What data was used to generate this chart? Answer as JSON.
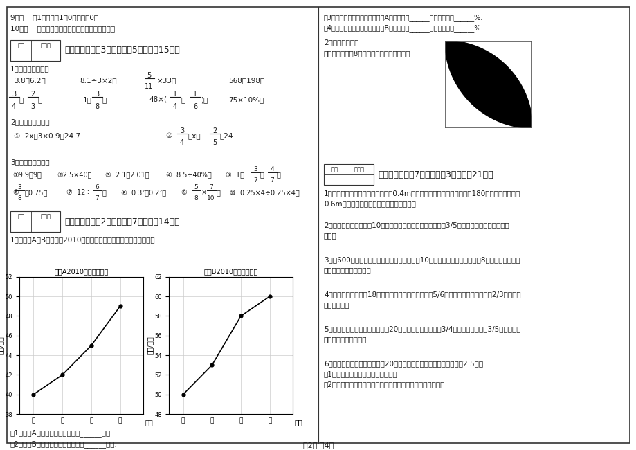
{
  "page_bg": "#ffffff",
  "border_color": "#000000",
  "text_color": "#1a1a1a",
  "gray": "#888888",
  "chart_A": {
    "title": "工厂A2010年产值统计图",
    "ylabel": "产值/万元",
    "xlabel": "季度",
    "x": [
      1,
      2,
      3,
      4
    ],
    "y": [
      40,
      42,
      45,
      49
    ],
    "ylim": [
      38,
      52
    ],
    "yticks": [
      38,
      40,
      42,
      44,
      46,
      48,
      50,
      52
    ],
    "xtick_labels": [
      "一",
      "二",
      "三",
      "四"
    ]
  },
  "chart_B": {
    "title": "工厂B2010年产值统计图",
    "ylabel": "产值/万元",
    "xlabel": "季度",
    "x": [
      1,
      2,
      3,
      4
    ],
    "y": [
      50,
      53,
      58,
      60
    ],
    "ylim": [
      48,
      62
    ],
    "yticks": [
      48,
      50,
      52,
      54,
      56,
      58,
      60,
      62
    ],
    "xtick_labels": [
      "一",
      "二",
      "三",
      "四"
    ]
  },
  "footer": "第2页 共4页"
}
